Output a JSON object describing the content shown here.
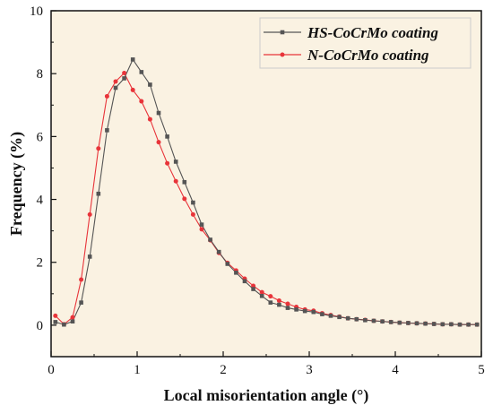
{
  "chart_data": {
    "type": "line",
    "title": "",
    "xlabel": "Local misorientation angle (°)",
    "ylabel": "Frequency (%)",
    "xlim": [
      0,
      5
    ],
    "ylim": [
      -1,
      10
    ],
    "xticks": [
      "0",
      "1",
      "2",
      "3",
      "4",
      "5"
    ],
    "yticks": [
      "0",
      "2",
      "4",
      "6",
      "8",
      "10"
    ],
    "grid": false,
    "legend_position": "top-right",
    "plot_background": "#faf2e2",
    "series": [
      {
        "name": "HS-CoCrMo coating",
        "color": "#555555",
        "marker": "square",
        "x": [
          0.05,
          0.15,
          0.25,
          0.35,
          0.45,
          0.55,
          0.65,
          0.75,
          0.85,
          0.95,
          1.05,
          1.15,
          1.25,
          1.35,
          1.45,
          1.55,
          1.65,
          1.75,
          1.85,
          1.95,
          2.05,
          2.15,
          2.25,
          2.35,
          2.45,
          2.55,
          2.65,
          2.75,
          2.85,
          2.95,
          3.05,
          3.15,
          3.25,
          3.35,
          3.45,
          3.55,
          3.65,
          3.75,
          3.85,
          3.95,
          4.05,
          4.15,
          4.25,
          4.35,
          4.45,
          4.55,
          4.65,
          4.75,
          4.85,
          4.95
        ],
        "values": [
          0.1,
          0.02,
          0.12,
          0.72,
          2.18,
          4.18,
          6.2,
          7.55,
          7.85,
          8.45,
          8.05,
          7.65,
          6.75,
          6.0,
          5.2,
          4.55,
          3.9,
          3.2,
          2.72,
          2.33,
          1.95,
          1.67,
          1.4,
          1.15,
          0.93,
          0.72,
          0.65,
          0.55,
          0.5,
          0.45,
          0.42,
          0.35,
          0.3,
          0.26,
          0.22,
          0.19,
          0.16,
          0.14,
          0.12,
          0.1,
          0.08,
          0.07,
          0.06,
          0.05,
          0.04,
          0.03,
          0.03,
          0.02,
          0.02,
          0.02
        ]
      },
      {
        "name": "N-CoCrMo coating",
        "color": "#e8343a",
        "marker": "circle",
        "x": [
          0.05,
          0.15,
          0.25,
          0.35,
          0.45,
          0.55,
          0.65,
          0.75,
          0.85,
          0.95,
          1.05,
          1.15,
          1.25,
          1.35,
          1.45,
          1.55,
          1.65,
          1.75,
          1.85,
          1.95,
          2.05,
          2.15,
          2.25,
          2.35,
          2.45,
          2.55,
          2.65,
          2.75,
          2.85,
          2.95,
          3.05,
          3.15,
          3.25,
          3.35,
          3.45,
          3.55,
          3.65,
          3.75,
          3.85,
          3.95,
          4.05,
          4.15,
          4.25,
          4.35,
          4.45,
          4.55,
          4.65,
          4.75,
          4.85,
          4.95
        ],
        "values": [
          0.3,
          0.03,
          0.25,
          1.45,
          3.52,
          5.62,
          7.28,
          7.75,
          8.02,
          7.48,
          7.12,
          6.55,
          5.82,
          5.15,
          4.58,
          4.02,
          3.52,
          3.05,
          2.7,
          2.3,
          1.98,
          1.74,
          1.48,
          1.25,
          1.05,
          0.92,
          0.78,
          0.68,
          0.58,
          0.5,
          0.46,
          0.38,
          0.32,
          0.27,
          0.22,
          0.19,
          0.17,
          0.14,
          0.12,
          0.1,
          0.08,
          0.07,
          0.06,
          0.05,
          0.04,
          0.03,
          0.03,
          0.02,
          0.02,
          0.02
        ]
      }
    ]
  }
}
